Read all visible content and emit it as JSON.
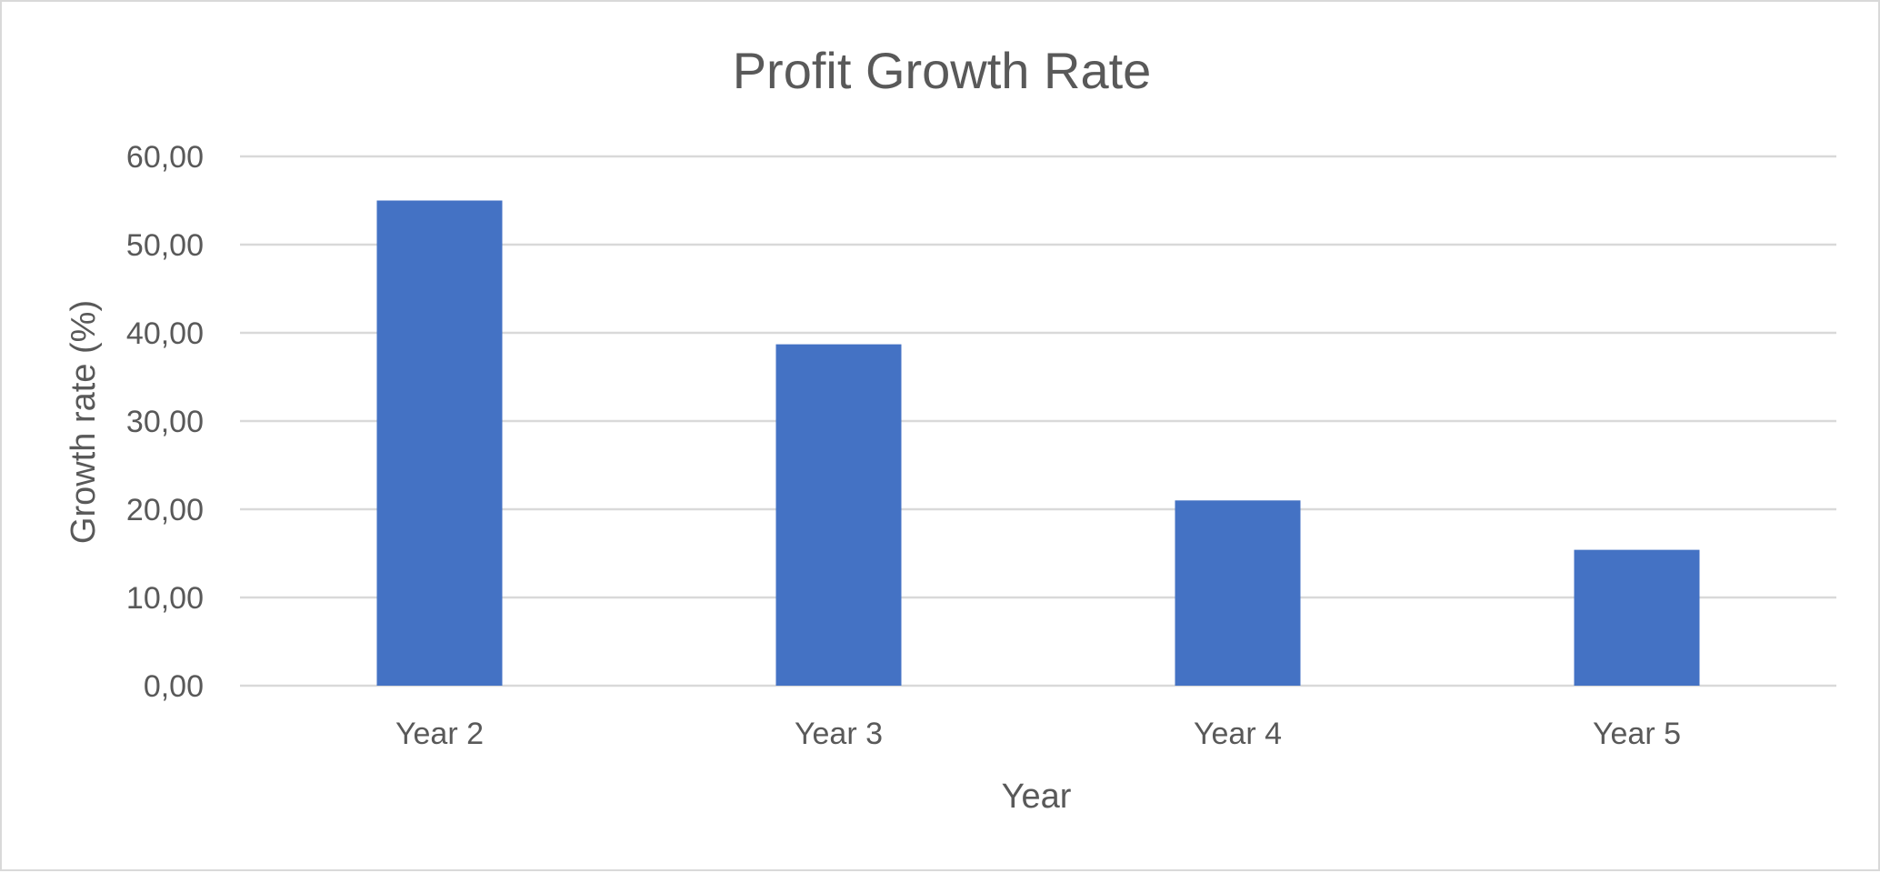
{
  "chart_data": {
    "type": "bar",
    "title": "Profit Growth Rate",
    "xlabel": "Year",
    "ylabel": "Growth rate (%)",
    "categories": [
      "Year 2",
      "Year 3",
      "Year 4",
      "Year 5"
    ],
    "values": [
      55.0,
      38.7,
      21.0,
      15.4
    ],
    "ylim": [
      0,
      60
    ],
    "yticks": [
      0,
      10,
      20,
      30,
      40,
      50,
      60
    ],
    "ytick_labels": [
      "0,00",
      "10,00",
      "20,00",
      "30,00",
      "40,00",
      "50,00",
      "60,00"
    ],
    "grid": true,
    "legend": "none",
    "colors": {
      "bar": "#4472C4"
    }
  }
}
